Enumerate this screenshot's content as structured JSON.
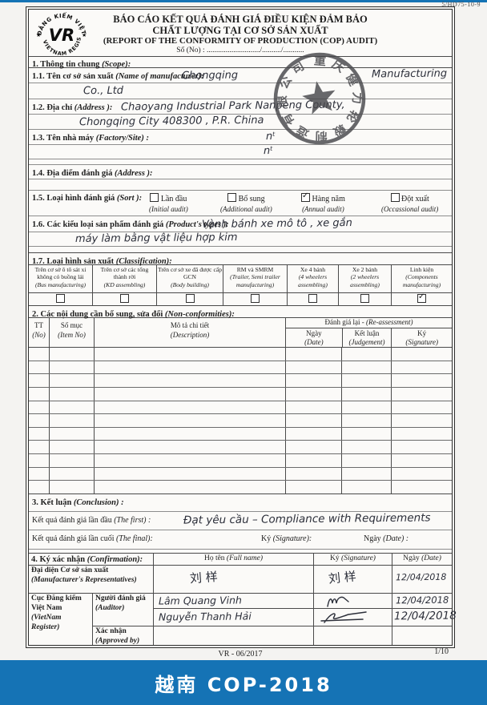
{
  "page": {
    "corner_ref": "5/HD75-10-9",
    "caption": "越南 COP-2018",
    "footer_code": "VR - 06/2017",
    "footer_page": "1/10",
    "accent_blue": "#1573b5"
  },
  "logo": {
    "arc_top": "ĐĂNG KIỂM VIỆT NAM",
    "arc_bottom": "VIETNAM REGISTER",
    "monogram": "VR"
  },
  "stamp": {
    "ring_text": "重庆健力轮毂制造有限公司"
  },
  "header": {
    "title_vn1": "BÁO CÁO KẾT QUẢ ĐÁNH GIÁ ĐIỀU KIỆN ĐẢM BẢO",
    "title_vn2": "CHẤT LƯỢNG TẠI CƠ SỞ SẢN XUẤT",
    "title_en": "(REPORT OF THE CONFORMITY OF PRODUCTION (COP) AUDIT)",
    "so_line": "Số (No) : ............................/........../..........."
  },
  "s1": {
    "title": {
      "vn": "1.  Thông tin chung ",
      "en": "(Scope):"
    },
    "f11": {
      "vn": "1.1. Tên cơ sở sản xuất ",
      "en": "(Name of manufacturer):",
      "hw1a": "Chongqing",
      "hw1b": "Manufacturing",
      "hw2": "Co., Ltd"
    },
    "f12": {
      "vn": "1.2. Địa chỉ ",
      "en": "(Address ):",
      "hw1": "Chaoyang   Industrial   Park   Nanpeng County,",
      "hw2": "Chongqing   City   408300 ,  P.R. China"
    },
    "f13": {
      "vn": "1.3. Tên nhà máy ",
      "en": "(Factory/Site) :",
      "hw": "nᵗ",
      "hw2": "nᵗ"
    },
    "f14": {
      "vn": "1.4. Địa điểm đánh giá ",
      "en": "(Address ):"
    },
    "f15": {
      "vn": "1.5. Loại hình đánh giá ",
      "en": "(Sort ):",
      "opts": [
        {
          "vn": "Lần đầu",
          "en": "(Initial audit)",
          "checked": false
        },
        {
          "vn": "Bổ sung",
          "en": "(Additional audit)",
          "checked": false
        },
        {
          "vn": "Hàng năm",
          "en": "(Annual audit)",
          "checked": true
        },
        {
          "vn": "Đột xuất",
          "en": "(Occassional audit)",
          "checked": false
        }
      ]
    },
    "f16": {
      "vn": "1.6. Các kiểu loại sản phẩm đánh giá ",
      "en": "(Product's types ):",
      "hw1": "Vành   bánh xe   mô tô ,  xe gắn",
      "hw2": "máy   làm   bằng   vật   liệu   hợp kim"
    },
    "f17": {
      "vn": "1.7. Loại hình sản xuất ",
      "en": "(Classification):",
      "cols": [
        {
          "vn": "Trên cơ sở ô tô sát xi không có buồng lái",
          "en": "(Bus manufacturing)",
          "checked": false
        },
        {
          "vn": "Trên cơ sở các tổng thành rời",
          "en": "(KD assembling)",
          "checked": false
        },
        {
          "vn": "Trên cơ sở xe đã được cấp GCN",
          "en": "(Body building)",
          "checked": false
        },
        {
          "vn": "RM và SMRM",
          "en": "(Trailer, Semi trailer manufacturing)",
          "checked": false
        },
        {
          "vn": "Xe 4 bánh",
          "en": "(4 wheelers assembling)",
          "checked": false
        },
        {
          "vn": "Xe 2 bánh",
          "en": "(2 wheelers assembling)",
          "checked": false
        },
        {
          "vn": "Linh kiện",
          "en": "(Components manufacturing)",
          "checked": true
        }
      ]
    }
  },
  "s2": {
    "title": {
      "vn": "2. Các nội dung cần bổ sung, sửa đổi ",
      "en": "(Non-conformities):"
    },
    "reassess": {
      "vn": "Đánh giá lại - ",
      "en": "(Re-assessment)"
    },
    "cols": {
      "tt": {
        "vn": "TT",
        "en": "(No)"
      },
      "item": {
        "vn": "Số mục",
        "en": "(Item No)"
      },
      "desc": {
        "vn": "Mô tả chi tiết",
        "en": "(Description)"
      },
      "date": {
        "vn": "Ngày",
        "en": "(Date)"
      },
      "judge": {
        "vn": "Kết luận",
        "en": "(Judgement)"
      },
      "sig": {
        "vn": "Ký",
        "en": "(Signature)"
      }
    },
    "empty_rows": 11
  },
  "s3": {
    "title": {
      "vn": "3. Kết luận ",
      "en": "(Conclusion) :"
    },
    "first": {
      "vn": "Kết quả đánh giá lần đầu ",
      "en": "(The first) :",
      "hw": "Đạt yêu cầu  –  Compliance  with  Requirements"
    },
    "final": {
      "vn": "Kết quả đánh giá lần cuối ",
      "en": "(The final):"
    },
    "sig": {
      "vn": "Ký ",
      "en": "(Signature):"
    },
    "date": {
      "vn": "Ngày ",
      "en": "(Date) :"
    }
  },
  "s4": {
    "title": {
      "vn": "4. Ký xác nhận ",
      "en": "(Confirmation):"
    },
    "cols": {
      "name": {
        "vn": "Họ tên ",
        "en": "(Full name)"
      },
      "sig": {
        "vn": "Ký ",
        "en": "(Signature)"
      },
      "date": {
        "vn": "Ngày ",
        "en": "(Date)"
      }
    },
    "rows": {
      "rep": {
        "vn": "Đại diện Cơ sở sản xuất",
        "en": "(Manufacturer's Representatives)",
        "name_hw": "刘 样",
        "sig_hw": "刘 样",
        "date_hw": "12/04/2018"
      },
      "vr": {
        "vn1": "Cục Đăng kiểm",
        "vn2": "Việt Nam",
        "en1": "(VietNam",
        "en2": "Register)"
      },
      "auditor": {
        "vn": "Người đánh giá",
        "en": "(Auditor)",
        "name1": "Lâm Quang Vinh",
        "date1": "12/04/2018",
        "name2": "Nguyễn Thanh Hải",
        "date2": "12/04/2018"
      },
      "approved": {
        "vn": "Xác nhận",
        "en": "(Approved by)"
      }
    }
  }
}
